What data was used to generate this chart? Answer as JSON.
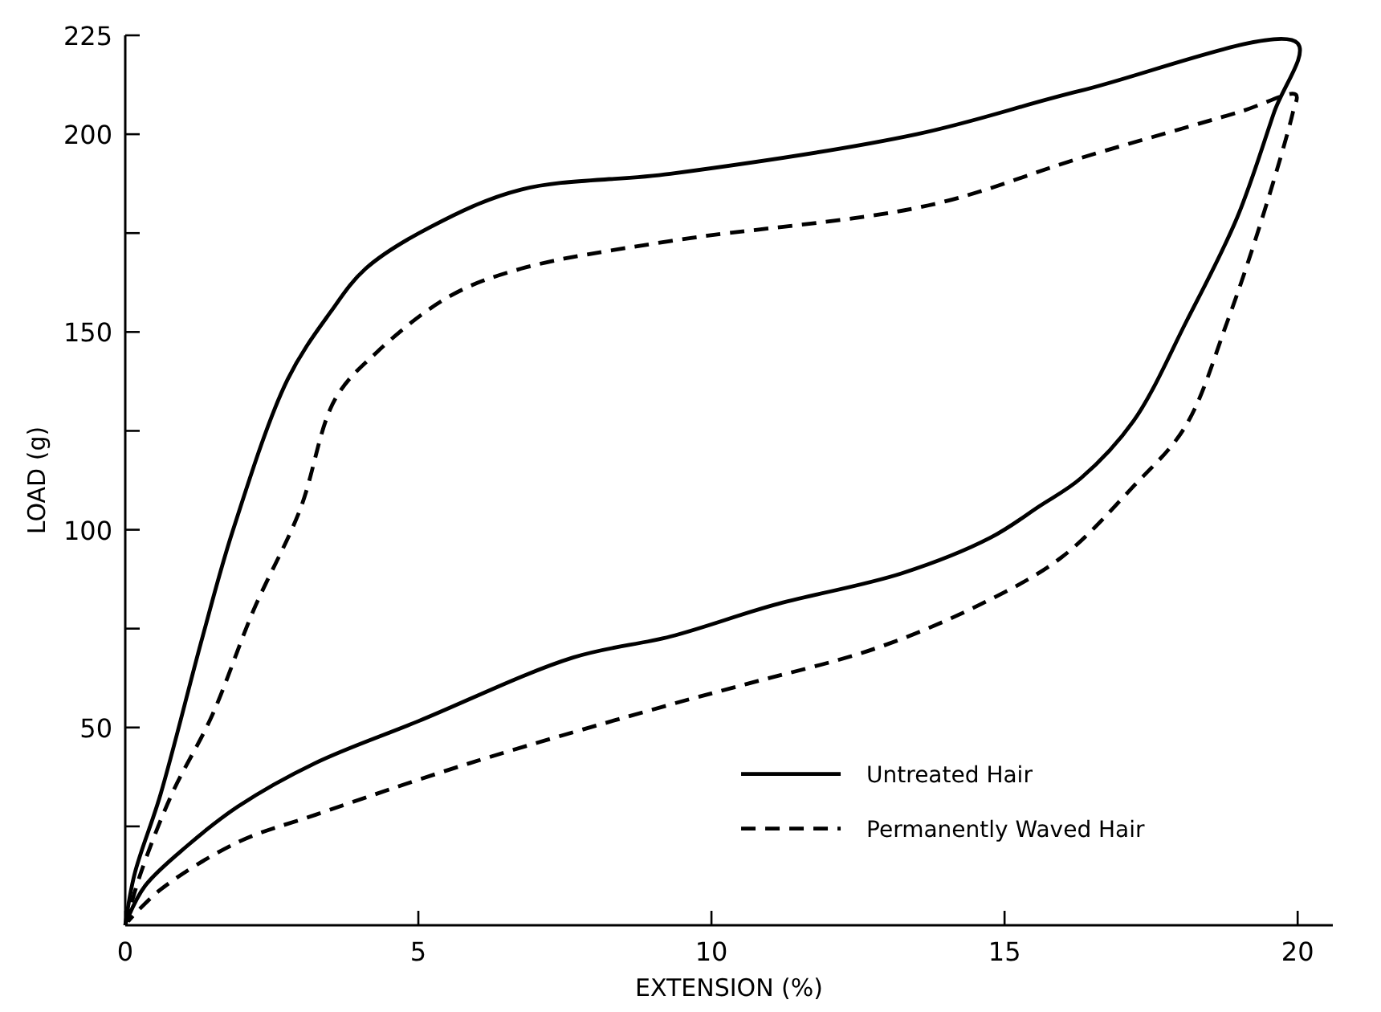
{
  "chart_data": {
    "type": "line",
    "xlabel": "EXTENSION (%)",
    "ylabel": "LOAD (g)",
    "xlim": [
      0,
      20.6
    ],
    "xticks": [
      0,
      5,
      10,
      15,
      20
    ],
    "ylim": [
      0,
      225
    ],
    "yticks": [
      {
        "value": 25,
        "label": null
      },
      50,
      {
        "value": 75,
        "label": null
      },
      100,
      {
        "value": 125,
        "label": null
      },
      150,
      {
        "value": 175,
        "label": null
      },
      200,
      225
    ],
    "legend": "bottom right",
    "grid": false,
    "series": [
      {
        "name": "Untreated Hair",
        "color": "#000000",
        "line_style": "solid",
        "x": [
          0,
          0.16,
          0.6,
          1.32,
          1.84,
          2.77,
          3.5,
          4.1,
          5.2,
          6.75,
          9.3,
          13.5,
          16.3,
          20,
          19.6,
          18.97,
          18.1,
          17.2,
          16.3,
          15.6,
          14.76,
          13.25,
          11.07,
          9.3,
          7.64,
          5.0,
          3.24,
          1.92,
          1.05,
          0.34,
          0.05
        ],
        "values": [
          0,
          13,
          33,
          73,
          100,
          138,
          155,
          166,
          176.5,
          186,
          190,
          200,
          211,
          223,
          205.6,
          179,
          152.6,
          127.5,
          113,
          106,
          98,
          89,
          81,
          73,
          67.7,
          51.6,
          41,
          30,
          20,
          10,
          2
        ]
      },
      {
        "name": "Permanently Waved Hair",
        "color": "#000000",
        "line_style": "dashed",
        "x": [
          0,
          0.26,
          0.79,
          1.48,
          2.19,
          2.98,
          3.58,
          4.3,
          5.53,
          6.75,
          9.3,
          13.7,
          16.3,
          19.0,
          19.97,
          19.92,
          19.4,
          18.8,
          18.08,
          17.2,
          15.97,
          14.57,
          12.8,
          10.6,
          9.3,
          5.88,
          3.24,
          1.92,
          0.6,
          0.05
        ],
        "values": [
          0,
          13,
          33,
          53,
          79.7,
          105,
          133,
          145,
          159,
          166,
          173,
          182,
          194,
          205.6,
          210,
          205.6,
          179,
          152.6,
          126,
          111,
          93,
          81,
          70,
          61,
          55.8,
          41,
          27.9,
          21,
          9,
          1
        ]
      }
    ]
  }
}
